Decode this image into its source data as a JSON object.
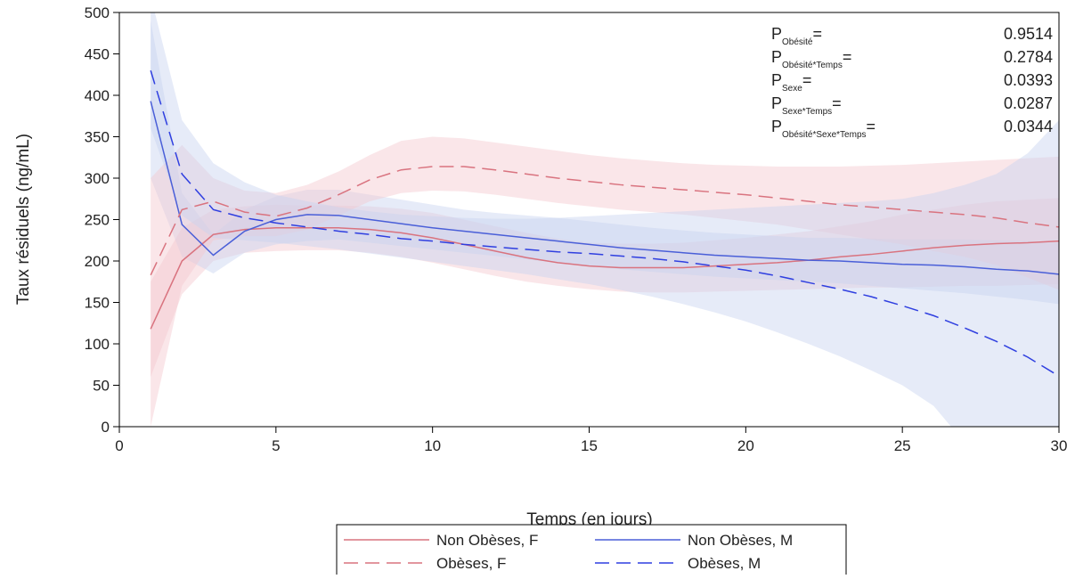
{
  "chart_data": {
    "type": "line",
    "title": "",
    "xlabel": "Temps (en jours)",
    "ylabel": "Taux résiduels (ng/mL)",
    "xlim": [
      0,
      30
    ],
    "ylim": [
      0,
      500
    ],
    "xticks": [
      0,
      5,
      10,
      15,
      20,
      25,
      30
    ],
    "yticks": [
      0,
      50,
      100,
      150,
      200,
      250,
      300,
      350,
      400,
      450,
      500
    ],
    "grid": false,
    "legend_position": "bottom",
    "series": [
      {
        "name": "Non Obèses, F",
        "color": "#d9737f",
        "band_color": "#f4c7ce",
        "dash": "solid",
        "x": [
          1,
          2,
          3,
          4,
          5,
          6,
          7,
          8,
          9,
          10,
          11,
          12,
          13,
          14,
          15,
          16,
          17,
          18,
          19,
          20,
          21,
          22,
          23,
          24,
          25,
          26,
          27,
          28,
          29,
          30
        ],
        "values": [
          118,
          200,
          232,
          238,
          240,
          240,
          240,
          238,
          234,
          228,
          220,
          212,
          204,
          198,
          194,
          192,
          192,
          192,
          194,
          196,
          198,
          201,
          205,
          208,
          212,
          216,
          219,
          221,
          222,
          224
        ],
        "lower": [
          60,
          160,
          200,
          210,
          212,
          213,
          213,
          210,
          205,
          198,
          190,
          182,
          175,
          170,
          166,
          163,
          162,
          162,
          163,
          164,
          165,
          166,
          167,
          168,
          168,
          169,
          170,
          170,
          171,
          172
        ],
        "upper": [
          175,
          240,
          262,
          266,
          268,
          267,
          267,
          266,
          263,
          258,
          250,
          242,
          234,
          227,
          222,
          221,
          221,
          222,
          225,
          228,
          232,
          236,
          242,
          248,
          256,
          262,
          268,
          272,
          274,
          276
        ]
      },
      {
        "name": "Non Obèses, M",
        "color": "#4a5fd8",
        "band_color": "#c8d3ef",
        "dash": "solid",
        "x": [
          1,
          2,
          3,
          4,
          5,
          6,
          7,
          8,
          9,
          10,
          11,
          12,
          13,
          14,
          15,
          16,
          17,
          18,
          19,
          20,
          21,
          22,
          23,
          24,
          25,
          26,
          27,
          28,
          29,
          30
        ],
        "values": [
          393,
          244,
          207,
          236,
          250,
          256,
          255,
          250,
          245,
          240,
          236,
          232,
          228,
          224,
          220,
          216,
          213,
          210,
          207,
          205,
          203,
          201,
          200,
          198,
          196,
          195,
          193,
          190,
          188,
          184
        ],
        "lower": [
          300,
          205,
          185,
          210,
          220,
          224,
          226,
          222,
          218,
          214,
          210,
          206,
          202,
          198,
          194,
          190,
          187,
          184,
          181,
          179,
          177,
          175,
          173,
          170,
          167,
          164,
          161,
          157,
          153,
          148
        ],
        "upper": [
          490,
          282,
          232,
          262,
          278,
          286,
          286,
          280,
          274,
          268,
          262,
          258,
          255,
          252,
          248,
          244,
          240,
          237,
          234,
          232,
          230,
          228,
          228,
          227,
          226,
          226,
          226,
          225,
          224,
          222
        ]
      },
      {
        "name": "Obèses, F",
        "color": "#d9737f",
        "band_color": "#f4c7ce",
        "dash": "dashed",
        "x": [
          1,
          2,
          3,
          4,
          5,
          6,
          7,
          8,
          9,
          10,
          11,
          12,
          13,
          14,
          15,
          16,
          17,
          18,
          19,
          20,
          21,
          22,
          23,
          24,
          25,
          26,
          27,
          28,
          29,
          30
        ],
        "values": [
          183,
          262,
          272,
          259,
          254,
          264,
          280,
          298,
          310,
          314,
          314,
          310,
          305,
          300,
          296,
          292,
          289,
          286,
          283,
          280,
          276,
          272,
          268,
          265,
          262,
          259,
          256,
          252,
          246,
          241
        ],
        "lower": [
          0,
          170,
          225,
          230,
          230,
          238,
          255,
          272,
          282,
          285,
          284,
          280,
          275,
          270,
          266,
          262,
          259,
          256,
          252,
          248,
          244,
          238,
          232,
          226,
          220,
          212,
          205,
          195,
          180,
          165
        ],
        "upper": [
          300,
          340,
          300,
          285,
          282,
          292,
          308,
          328,
          345,
          350,
          348,
          343,
          338,
          333,
          328,
          324,
          321,
          318,
          316,
          315,
          314,
          314,
          314,
          315,
          316,
          318,
          320,
          322,
          324,
          326
        ]
      },
      {
        "name": "Obèses, M",
        "color": "#2f3fe0",
        "band_color": "#c8d3ef",
        "dash": "dashed",
        "x": [
          1,
          2,
          3,
          4,
          5,
          6,
          7,
          8,
          9,
          10,
          11,
          12,
          13,
          14,
          15,
          16,
          17,
          18,
          19,
          20,
          21,
          22,
          23,
          24,
          25,
          26,
          27,
          28,
          29,
          30
        ],
        "values": [
          430,
          305,
          262,
          252,
          246,
          241,
          236,
          232,
          227,
          224,
          220,
          217,
          214,
          211,
          209,
          206,
          203,
          199,
          194,
          189,
          182,
          174,
          166,
          157,
          146,
          134,
          119,
          103,
          84,
          61
        ],
        "lower": [
          360,
          255,
          228,
          225,
          222,
          218,
          214,
          209,
          204,
          199,
          194,
          189,
          184,
          178,
          172,
          165,
          157,
          148,
          138,
          127,
          114,
          100,
          85,
          68,
          50,
          25,
          -20,
          -70,
          -130,
          -200
        ],
        "upper": [
          520,
          370,
          318,
          295,
          280,
          272,
          265,
          260,
          256,
          254,
          252,
          251,
          251,
          252,
          254,
          256,
          258,
          260,
          262,
          264,
          266,
          268,
          270,
          272,
          275,
          282,
          292,
          305,
          330,
          370
        ]
      }
    ],
    "annotations": [
      {
        "label": "P",
        "sub": "Obésité",
        "eq": "=",
        "value": "0.9514"
      },
      {
        "label": "P",
        "sub": "Obésité*Temps",
        "eq": "=",
        "value": "0.2784"
      },
      {
        "label": "P",
        "sub": "Sexe",
        "eq": "=",
        "value": "0.0393"
      },
      {
        "label": "P",
        "sub": "Sexe*Temps",
        "eq": "=",
        "value": "0.0287"
      },
      {
        "label": "P",
        "sub": "Obésité*Sexe*Temps",
        "eq": "=",
        "value": "0.0344"
      }
    ],
    "legend_order": [
      "Non Obèses, F",
      "Non Obèses, M",
      "Obèses, F",
      "Obèses, M"
    ]
  }
}
